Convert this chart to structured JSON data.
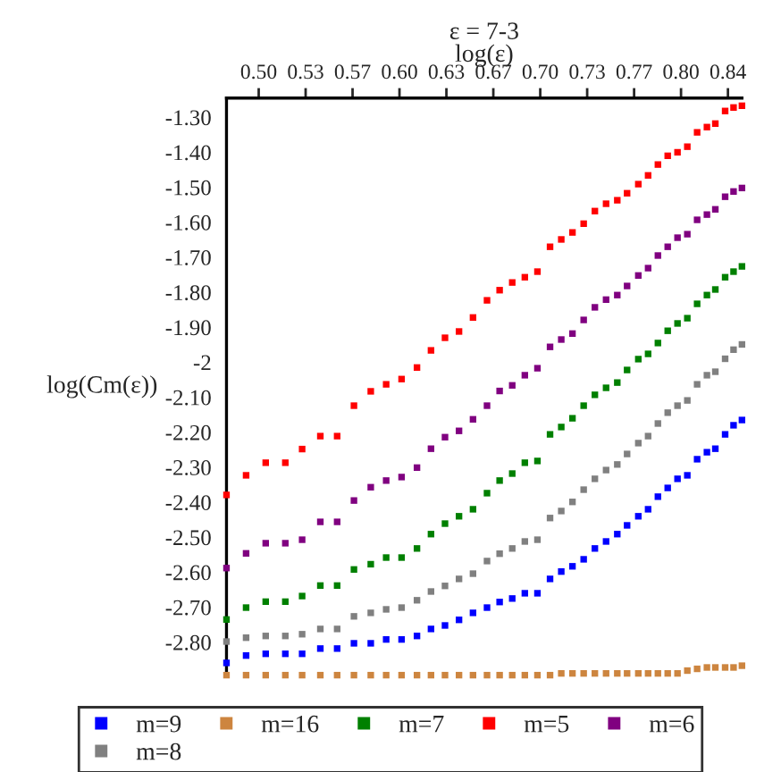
{
  "chart_data": {
    "type": "scatter",
    "title": "ε = 7-3",
    "xlabel": "log(ε)",
    "ylabel": "log(Cm(ε))",
    "x": [
      0.477,
      0.491,
      0.505,
      0.519,
      0.531,
      0.544,
      0.556,
      0.568,
      0.58,
      0.591,
      0.602,
      0.613,
      0.623,
      0.633,
      0.643,
      0.653,
      0.663,
      0.672,
      0.681,
      0.69,
      0.699,
      0.708,
      0.716,
      0.724,
      0.732,
      0.74,
      0.748,
      0.756,
      0.763,
      0.771,
      0.778,
      0.785,
      0.792,
      0.799,
      0.806,
      0.813,
      0.82,
      0.826,
      0.833,
      0.839,
      0.845
    ],
    "series": [
      {
        "name": "m=9",
        "color": "#0000ff",
        "values": [
          -2.859,
          -2.838,
          -2.833,
          -2.833,
          -2.833,
          -2.818,
          -2.818,
          -2.803,
          -2.803,
          -2.792,
          -2.792,
          -2.782,
          -2.762,
          -2.752,
          -2.736,
          -2.716,
          -2.701,
          -2.685,
          -2.675,
          -2.66,
          -2.66,
          -2.619,
          -2.598,
          -2.583,
          -2.563,
          -2.532,
          -2.512,
          -2.491,
          -2.466,
          -2.44,
          -2.42,
          -2.384,
          -2.359,
          -2.333,
          -2.323,
          -2.277,
          -2.257,
          -2.247,
          -2.206,
          -2.18,
          -2.165
        ]
      },
      {
        "name": "m=16",
        "color": "#cd853f",
        "values": [
          -2.894,
          -2.894,
          -2.894,
          -2.894,
          -2.894,
          -2.894,
          -2.894,
          -2.894,
          -2.894,
          -2.894,
          -2.894,
          -2.894,
          -2.894,
          -2.894,
          -2.894,
          -2.894,
          -2.894,
          -2.894,
          -2.894,
          -2.894,
          -2.894,
          -2.894,
          -2.889,
          -2.889,
          -2.889,
          -2.889,
          -2.889,
          -2.889,
          -2.889,
          -2.889,
          -2.889,
          -2.889,
          -2.889,
          -2.889,
          -2.881,
          -2.876,
          -2.872,
          -2.872,
          -2.872,
          -2.872,
          -2.867
        ]
      },
      {
        "name": "m=7",
        "color": "#008000",
        "values": [
          -2.735,
          -2.701,
          -2.684,
          -2.684,
          -2.668,
          -2.638,
          -2.638,
          -2.592,
          -2.577,
          -2.558,
          -2.558,
          -2.532,
          -2.491,
          -2.461,
          -2.44,
          -2.42,
          -2.374,
          -2.338,
          -2.318,
          -2.287,
          -2.282,
          -2.206,
          -2.185,
          -2.16,
          -2.124,
          -2.093,
          -2.073,
          -2.058,
          -2.022,
          -1.991,
          -1.976,
          -1.945,
          -1.91,
          -1.889,
          -1.874,
          -1.833,
          -1.808,
          -1.792,
          -1.757,
          -1.741,
          -1.726
        ]
      },
      {
        "name": "m=5",
        "color": "#ff0000",
        "values": [
          -2.379,
          -2.323,
          -2.287,
          -2.287,
          -2.248,
          -2.211,
          -2.211,
          -2.124,
          -2.083,
          -2.063,
          -2.048,
          -2.015,
          -1.966,
          -1.93,
          -1.912,
          -1.872,
          -1.823,
          -1.794,
          -1.772,
          -1.757,
          -1.741,
          -1.67,
          -1.649,
          -1.629,
          -1.604,
          -1.568,
          -1.547,
          -1.537,
          -1.517,
          -1.491,
          -1.466,
          -1.435,
          -1.41,
          -1.4,
          -1.384,
          -1.343,
          -1.328,
          -1.318,
          -1.282,
          -1.272,
          -1.267
        ]
      },
      {
        "name": "m=6",
        "color": "#800080",
        "values": [
          -2.588,
          -2.546,
          -2.517,
          -2.517,
          -2.507,
          -2.456,
          -2.456,
          -2.395,
          -2.357,
          -2.338,
          -2.328,
          -2.301,
          -2.247,
          -2.214,
          -2.196,
          -2.163,
          -2.124,
          -2.082,
          -2.066,
          -2.037,
          -2.017,
          -1.956,
          -1.935,
          -1.918,
          -1.879,
          -1.843,
          -1.821,
          -1.808,
          -1.782,
          -1.752,
          -1.731,
          -1.695,
          -1.67,
          -1.644,
          -1.634,
          -1.593,
          -1.578,
          -1.563,
          -1.527,
          -1.512,
          -1.502
        ]
      },
      {
        "name": "m=8",
        "color": "#808080",
        "values": [
          -2.798,
          -2.787,
          -2.782,
          -2.782,
          -2.777,
          -2.762,
          -2.762,
          -2.726,
          -2.716,
          -2.706,
          -2.701,
          -2.68,
          -2.655,
          -2.639,
          -2.619,
          -2.604,
          -2.568,
          -2.547,
          -2.532,
          -2.512,
          -2.507,
          -2.445,
          -2.425,
          -2.399,
          -2.364,
          -2.333,
          -2.308,
          -2.292,
          -2.262,
          -2.231,
          -2.211,
          -2.175,
          -2.144,
          -2.124,
          -2.109,
          -2.063,
          -2.037,
          -2.027,
          -1.99,
          -1.964,
          -1.949
        ]
      }
    ],
    "xlim": [
      0.477,
      0.845
    ],
    "ylim": [
      -2.895,
      -1.245
    ],
    "xticks": [
      {
        "value": 0.5,
        "label": "0.50"
      },
      {
        "value": 0.5335,
        "label": "0.53"
      },
      {
        "value": 0.567,
        "label": "0.57"
      },
      {
        "value": 0.6005,
        "label": "0.60"
      },
      {
        "value": 0.634,
        "label": "0.63"
      },
      {
        "value": 0.6675,
        "label": "0.67"
      },
      {
        "value": 0.701,
        "label": "0.70"
      },
      {
        "value": 0.7345,
        "label": "0.73"
      },
      {
        "value": 0.768,
        "label": "0.77"
      },
      {
        "value": 0.8015,
        "label": "0.80"
      },
      {
        "value": 0.835,
        "label": "0.84"
      }
    ],
    "yticks": [
      {
        "value": -1.3,
        "label": "-1.30"
      },
      {
        "value": -1.4,
        "label": "-1.40"
      },
      {
        "value": -1.5,
        "label": "-1.50"
      },
      {
        "value": -1.6,
        "label": "-1.60"
      },
      {
        "value": -1.7,
        "label": "-1.70"
      },
      {
        "value": -1.8,
        "label": "-1.80"
      },
      {
        "value": -1.9,
        "label": "-1.90"
      },
      -2,
      {
        "value": -2.1,
        "label": "-2.10"
      },
      {
        "value": -2.2,
        "label": "-2.20"
      },
      {
        "value": -2.3,
        "label": "-2.30"
      },
      {
        "value": -2.4,
        "label": "-2.40"
      },
      {
        "value": -2.5,
        "label": "-2.50"
      },
      {
        "value": -2.6,
        "label": "-2.60"
      },
      {
        "value": -2.7,
        "label": "-2.70"
      },
      {
        "value": -2.8,
        "label": "-2.80"
      }
    ],
    "marker": "square",
    "legend": "bottom",
    "grid": false
  }
}
